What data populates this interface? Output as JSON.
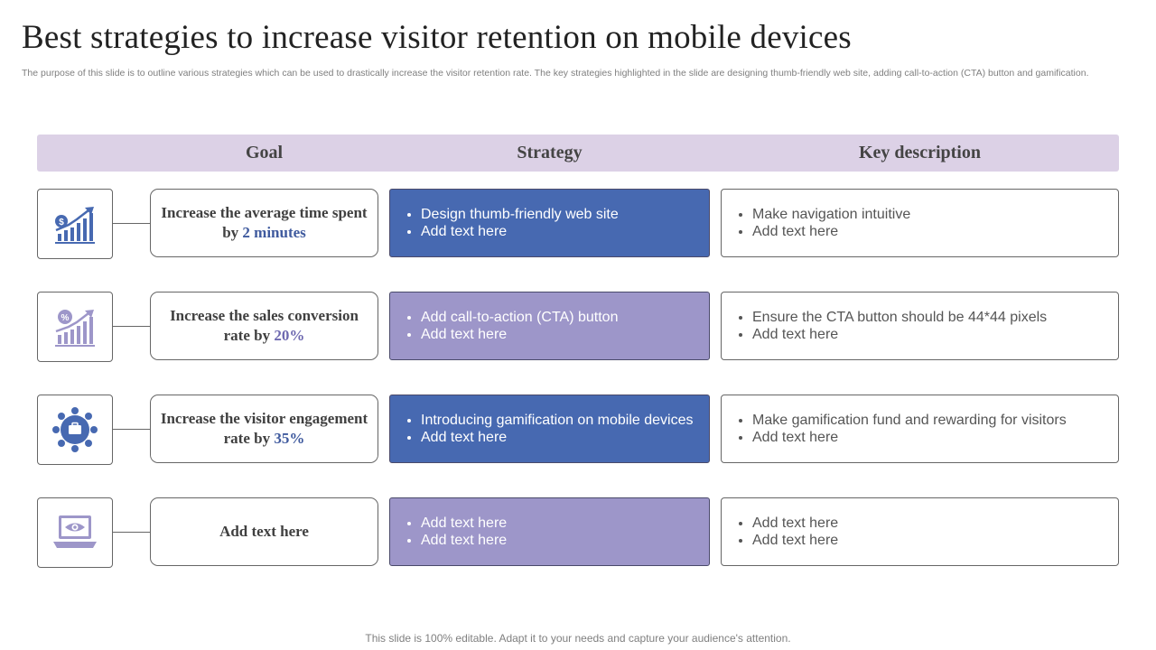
{
  "title": "Best strategies to increase visitor retention on mobile devices",
  "subtitle": "The purpose of this slide is to outline various strategies which can be used to drastically increase the visitor retention rate. The key strategies highlighted in the slide are designing thumb-friendly web site, adding call-to-action (CTA) button and gamification.",
  "headers": {
    "goal": "Goal",
    "strategy": "Strategy",
    "description": "Key description"
  },
  "colors": {
    "blue": "#4769b1",
    "lavender": "#9d96c9",
    "header_bg": "#dcd1e6"
  },
  "rows": [
    {
      "icon": "chart-growth-dollar-icon",
      "goal_text": "Increase the average time spent by ",
      "goal_highlight": "2 minutes",
      "strategy": [
        "Design thumb-friendly  web site",
        "Add text here"
      ],
      "description": [
        "Make navigation intuitive",
        "Add text here"
      ]
    },
    {
      "icon": "chart-growth-percent-icon",
      "goal_text": "Increase the sales conversion rate by ",
      "goal_highlight": "20%",
      "strategy": [
        "Add call-to-action  (CTA) button",
        "Add text here"
      ],
      "description": [
        "Ensure the CTA button should be 44*44 pixels",
        "Add text here"
      ]
    },
    {
      "icon": "team-engagement-icon",
      "goal_text": "Increase the visitor engagement rate by ",
      "goal_highlight": "35%",
      "strategy": [
        "Introducing  gamification on mobile devices",
        "Add text here"
      ],
      "description": [
        "Make gamification fund and rewarding for visitors",
        "Add text here"
      ]
    },
    {
      "icon": "laptop-eye-icon",
      "goal_text": "Add text here",
      "goal_highlight": "",
      "strategy": [
        "Add text here",
        "Add text here"
      ],
      "description": [
        "Add text here",
        "Add text here"
      ]
    }
  ],
  "footer": "This slide is 100% editable. Adapt it to your needs and capture your audience's attention."
}
